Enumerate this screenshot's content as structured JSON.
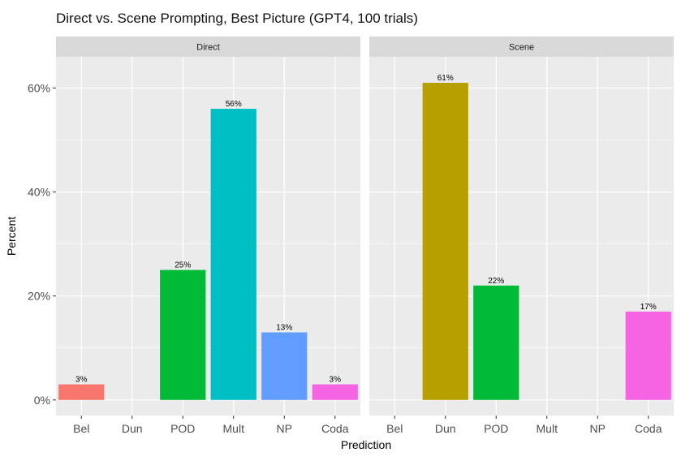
{
  "chart_data": {
    "type": "bar",
    "title": "Direct vs. Scene Prompting, Best Picture (GPT4, 100 trials)",
    "xlabel": "Prediction",
    "ylabel": "Percent",
    "ylim": [
      -0.03,
      0.66
    ],
    "y_ticks": [
      0,
      0.2,
      0.4,
      0.6
    ],
    "y_tick_labels": [
      "0%",
      "20%",
      "40%",
      "60%"
    ],
    "categories": [
      "Bel",
      "Dun",
      "POD",
      "Mult",
      "NP",
      "Coda"
    ],
    "category_colors": {
      "Bel": "#F8766D",
      "Dun": "#B79F00",
      "POD": "#00BA38",
      "Mult": "#00BFC4",
      "NP": "#619CFF",
      "Coda": "#F564E3"
    },
    "grid": true,
    "panel_background": "#EBEBEB",
    "strip_background": "#D9D9D9",
    "facets": [
      {
        "name": "Direct",
        "values": [
          0.03,
          0,
          0.25,
          0.56,
          0.13,
          0.03
        ],
        "labels": [
          "3%",
          "",
          "25%",
          "56%",
          "13%",
          "3%"
        ]
      },
      {
        "name": "Scene",
        "values": [
          0,
          0.61,
          0.22,
          0,
          0,
          0.17
        ],
        "labels": [
          "",
          "61%",
          "22%",
          "",
          "",
          "17%"
        ]
      }
    ]
  }
}
